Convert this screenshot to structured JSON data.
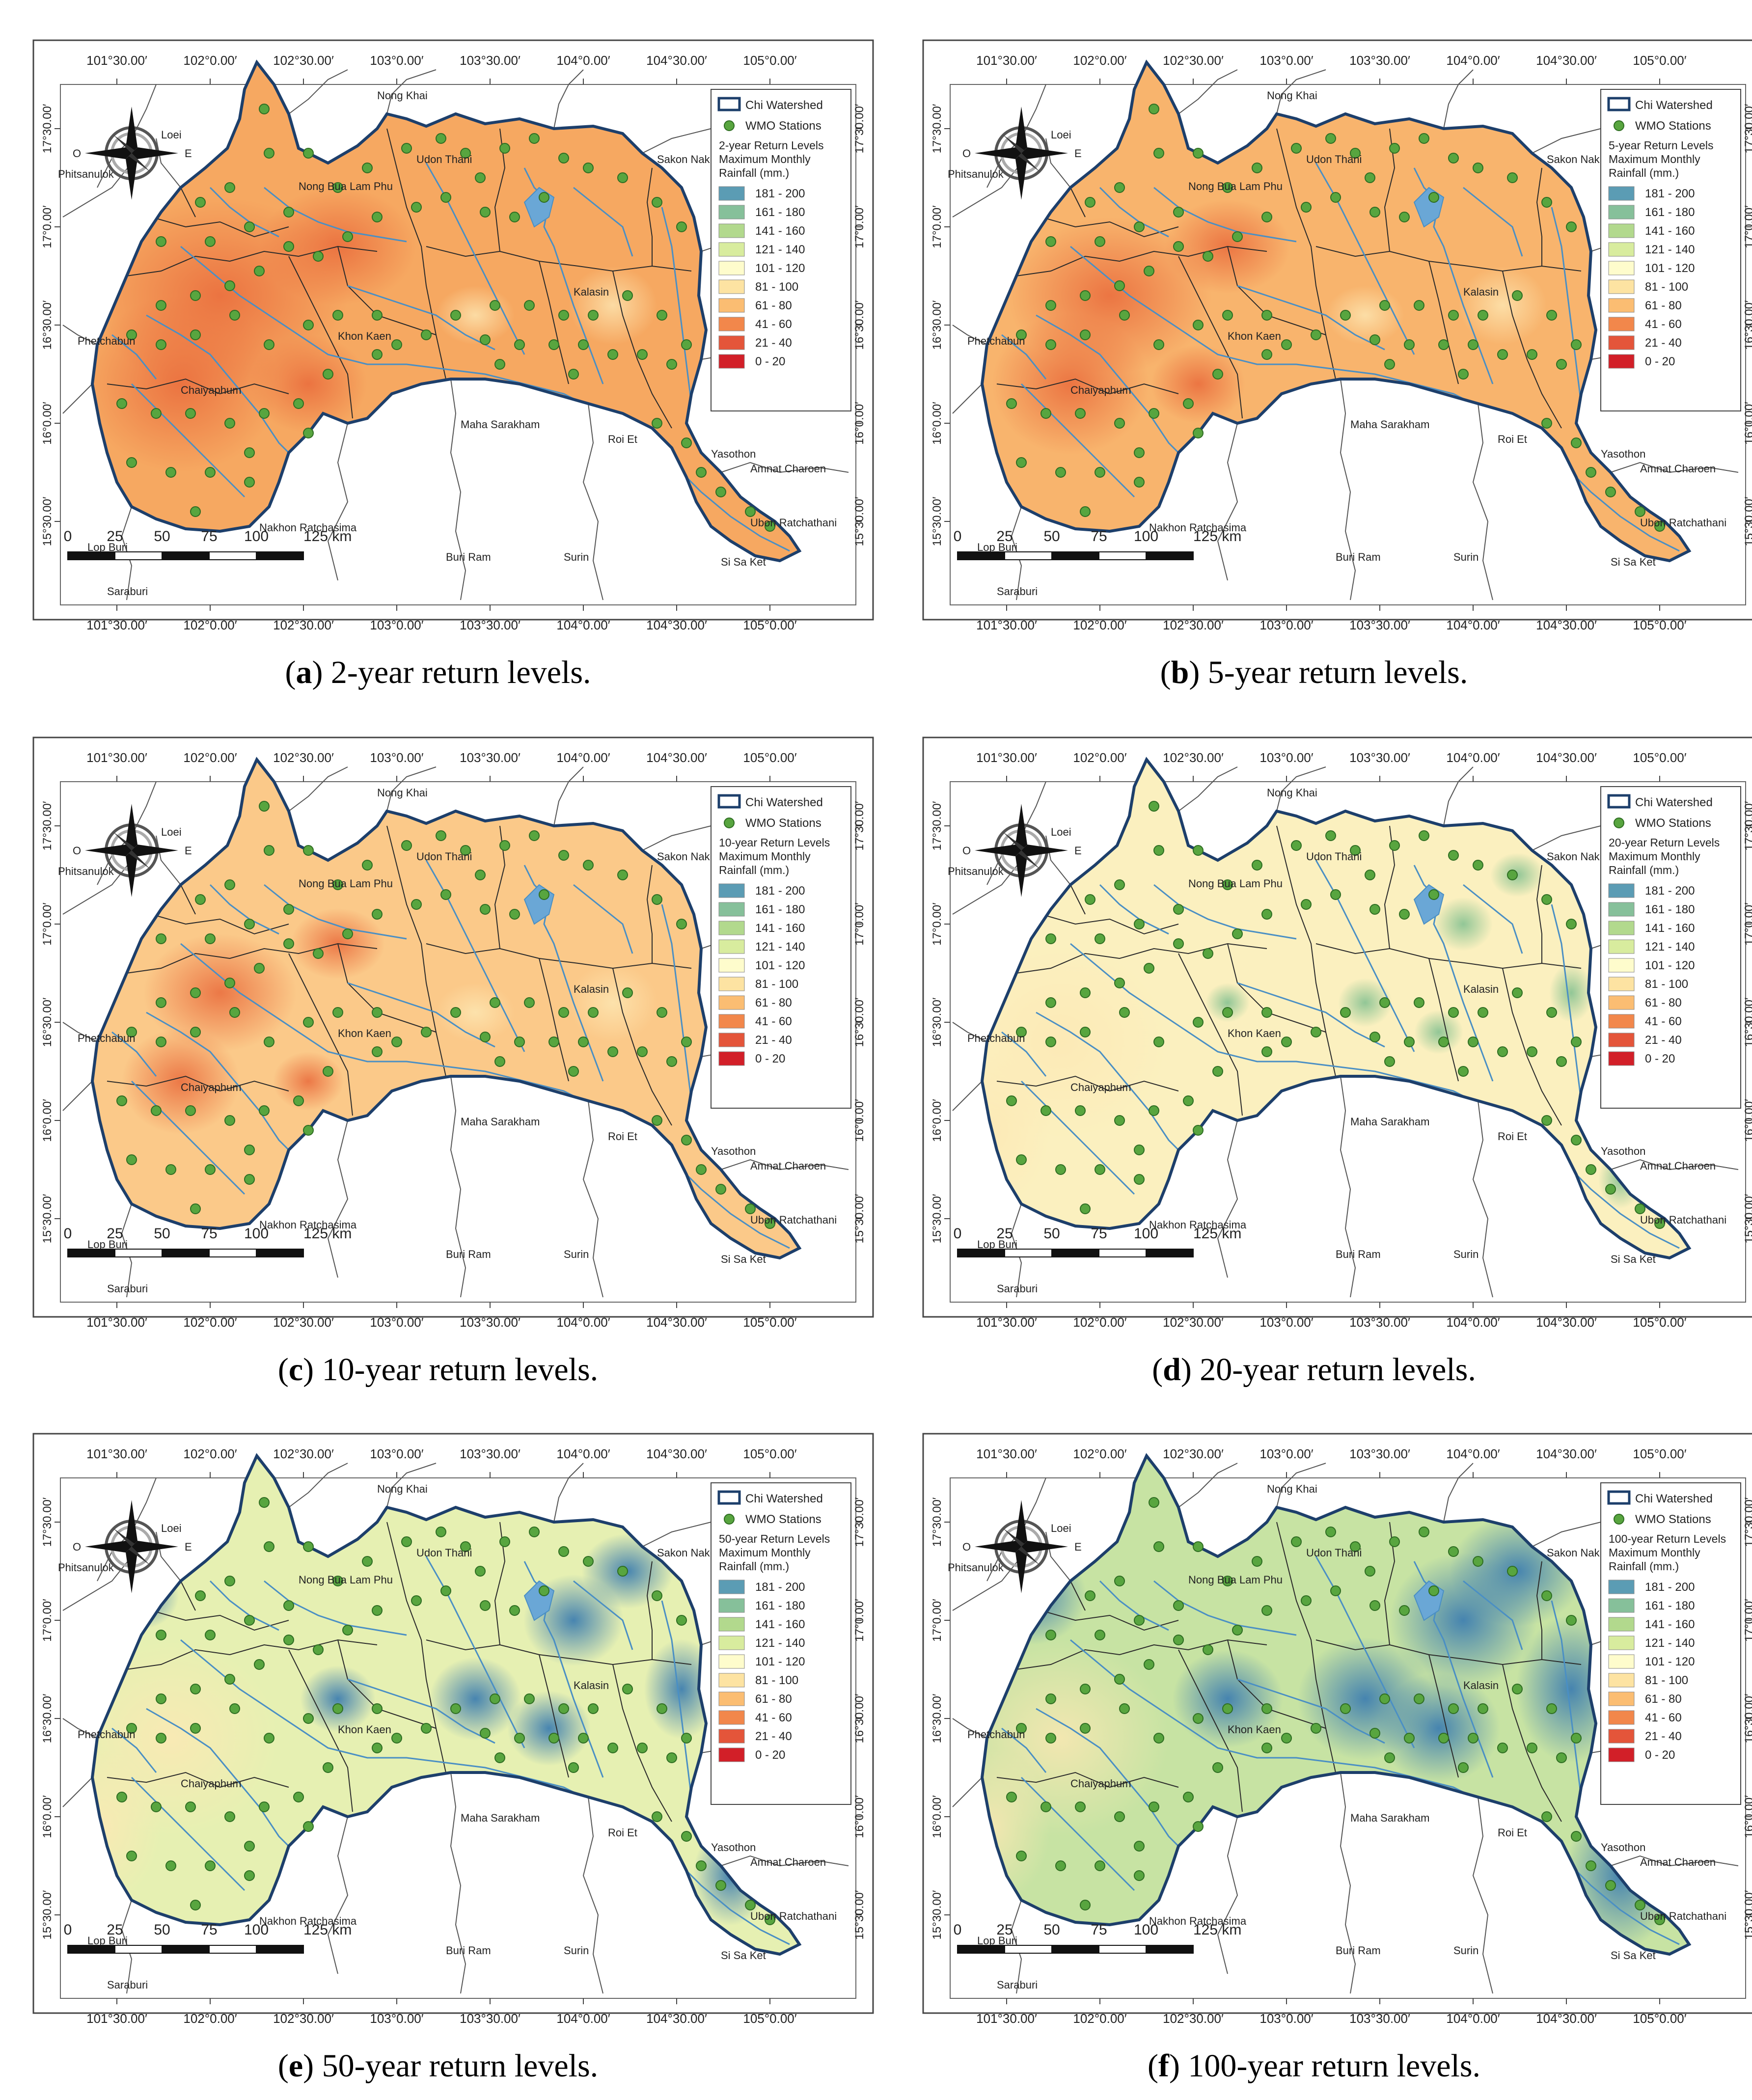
{
  "figure": {
    "longitude_ticks": [
      "101°30.00′",
      "102°0.00′",
      "102°30.00′",
      "103°0.00′",
      "103°30.00′",
      "104°0.00′",
      "104°30.00′",
      "105°0.00′"
    ],
    "latitude_ticks": [
      "17°30.00′",
      "17°0.00′",
      "16°30.00′",
      "16°0.00′",
      "15°30.00′"
    ],
    "place_names": [
      "Nong Khai",
      "Udon Thani",
      "Sakon Nakhon",
      "Loei",
      "Phitsanulok",
      "Nong Bua Lam Phu",
      "Kalasin",
      "Khon Kaen",
      "Phetchabun",
      "Chaiyaphum",
      "Maha Sarakham",
      "Roi Et",
      "Yasothon",
      "Amnat Charoen",
      "Ubon Ratchathani",
      "Nakhon Ratchasima",
      "Buri Ram",
      "Surin",
      "Si Sa Ket",
      "Lop Buri",
      "Saraburi"
    ],
    "scale_bar": {
      "labels": [
        "0",
        "25",
        "50",
        "75",
        "100",
        "125 km"
      ]
    },
    "compass": {
      "left": "O",
      "right": "E"
    },
    "legend": {
      "watershed_label": "Chi Watershed",
      "stations_label": "WMO Stations",
      "title_suffix": "Maximum Monthly Rainfall (mm.)",
      "classes": [
        "181 - 200",
        "161 - 180",
        "141 - 160",
        "121 - 140",
        "101 - 120",
        "81 - 100",
        "61 - 80",
        "41 - 60",
        "21 - 40",
        "0 - 20"
      ],
      "class_colors": [
        "#5b9cb4",
        "#86c09a",
        "#b2d98d",
        "#d8ec9e",
        "#fefccc",
        "#fde3a2",
        "#fbbd72",
        "#f2874b",
        "#e4553a",
        "#d21f28"
      ]
    },
    "colors": {
      "watershed_outline": "#1d3f6b",
      "river": "#4a8fc4",
      "station": "#58a53f",
      "boundary": "#222222"
    },
    "panels": [
      {
        "letter": "a",
        "legend_title": "2-year Return Levels",
        "caption": ") 2-year return levels.",
        "base_color": "#f6a861",
        "level_fraction": 0.0
      },
      {
        "letter": "b",
        "legend_title": "5-year Return Levels",
        "caption": ") 5-year return levels.",
        "base_color": "#f8b46d",
        "level_fraction": 0.2
      },
      {
        "letter": "c",
        "legend_title": "10-year Return Levels",
        "caption": ") 10-year return levels.",
        "base_color": "#fbc989",
        "level_fraction": 0.4
      },
      {
        "letter": "d",
        "legend_title": "20-year Return Levels",
        "caption": ") 20-year return levels.",
        "base_color": "#fbf0bf",
        "level_fraction": 0.6
      },
      {
        "letter": "e",
        "legend_title": "50-year Return Levels",
        "caption": ") 50-year return levels.",
        "base_color": "#e6f0b2",
        "level_fraction": 0.8
      },
      {
        "letter": "f",
        "legend_title": "100-year Return Levels",
        "caption": ") 100-year return levels.",
        "base_color": "#c7e3a3",
        "level_fraction": 1.0
      }
    ]
  }
}
